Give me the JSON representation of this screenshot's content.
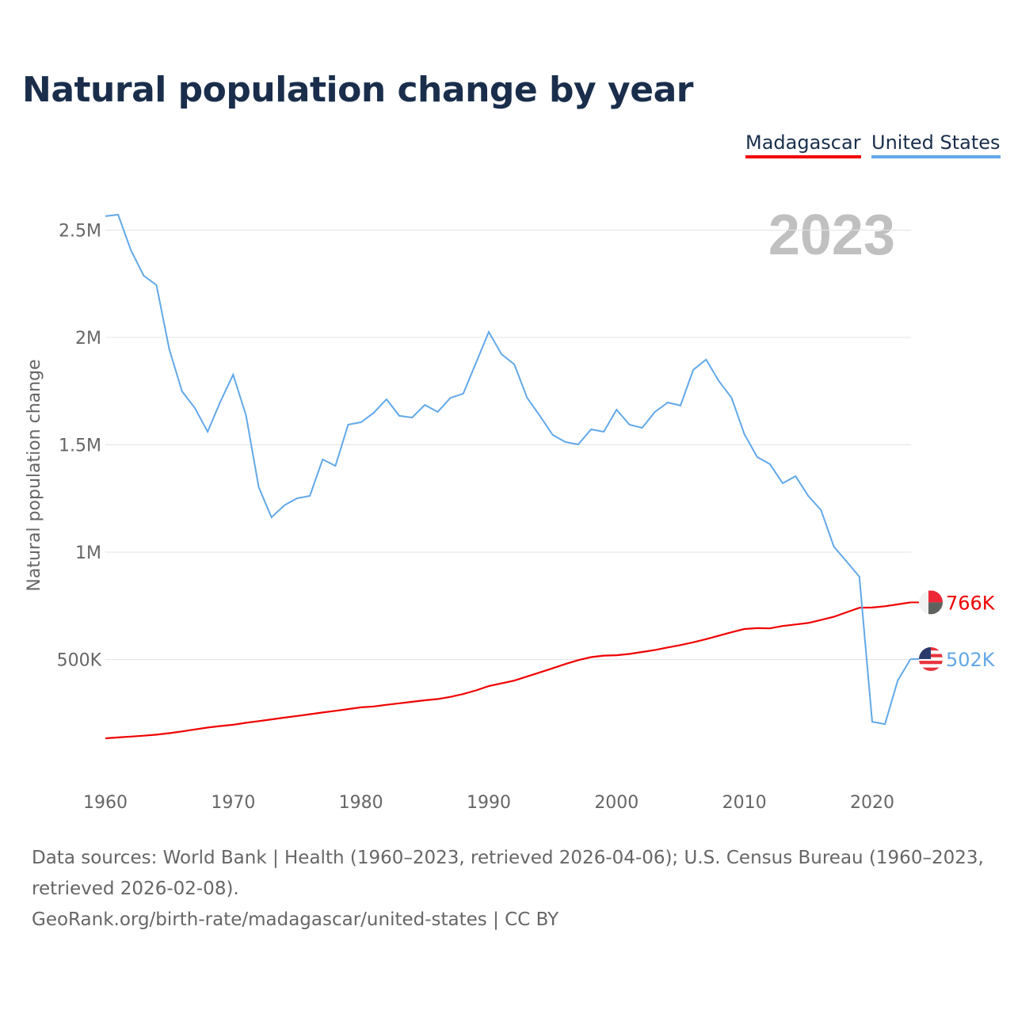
{
  "title": "Natural population change by year",
  "year_label": "2023",
  "footer": {
    "sources": "Data sources: World Bank | Health (1960–2023, retrieved 2026-04-06); U.S. Census Bureau (1960–2023,",
    "sources2": "retrieved 2026-02-08).",
    "link": "GeoRank.org/birth-rate/madagascar/united-states | CC BY"
  },
  "chart_data": {
    "type": "line",
    "title": "Natural population change by year",
    "xlabel": "",
    "ylabel": "Natural population change",
    "xlim": [
      1960,
      2023
    ],
    "ylim": [
      0,
      2700000
    ],
    "x_ticks": [
      1960,
      1970,
      1980,
      1990,
      2000,
      2010,
      2020
    ],
    "y_ticks": [
      {
        "v": 500000,
        "label": "500K"
      },
      {
        "v": 1000000,
        "label": "1M"
      },
      {
        "v": 1500000,
        "label": "1.5M"
      },
      {
        "v": 2000000,
        "label": "2M"
      },
      {
        "v": 2500000,
        "label": "2.5M"
      }
    ],
    "grid": true,
    "legend_position": "top-right",
    "x_start": 1960,
    "series": [
      {
        "name": "Madagascar",
        "color": "#f00000",
        "end_label": "766K",
        "flag": "madagascar-flag-icon",
        "values": [
          133000,
          137000,
          141000,
          145000,
          150000,
          157000,
          165000,
          174000,
          183000,
          190000,
          196000,
          205000,
          213000,
          221000,
          229000,
          237000,
          245000,
          253000,
          261000,
          269000,
          277000,
          281000,
          289000,
          296000,
          303000,
          310000,
          316000,
          326000,
          339000,
          356000,
          376000,
          389000,
          402000,
          421000,
          440000,
          459000,
          479000,
          497000,
          511000,
          518000,
          520000,
          526000,
          535000,
          544000,
          556000,
          567000,
          580000,
          595000,
          611000,
          627000,
          642000,
          646000,
          645000,
          656000,
          663000,
          670000,
          684000,
          699000,
          720000,
          741000,
          742000,
          748000,
          757000,
          766000
        ]
      },
      {
        "name": "United States",
        "color": "#62a8e8",
        "end_label": "502K",
        "flag": "us-flag-icon",
        "values": [
          2565000,
          2572000,
          2406000,
          2288000,
          2244000,
          1945000,
          1749000,
          1672000,
          1561000,
          1701000,
          1827000,
          1638000,
          1303000,
          1162000,
          1218000,
          1251000,
          1262000,
          1432000,
          1402000,
          1594000,
          1605000,
          1649000,
          1712000,
          1635000,
          1627000,
          1686000,
          1653000,
          1719000,
          1738000,
          1882000,
          2026000,
          1922000,
          1874000,
          1719000,
          1635000,
          1546000,
          1513000,
          1502000,
          1572000,
          1561000,
          1664000,
          1594000,
          1579000,
          1653000,
          1697000,
          1683000,
          1849000,
          1897000,
          1797000,
          1719000,
          1550000,
          1443000,
          1410000,
          1321000,
          1354000,
          1262000,
          1196000,
          1026000,
          956000,
          886000,
          210000,
          199000,
          402000,
          502000
        ]
      }
    ]
  }
}
